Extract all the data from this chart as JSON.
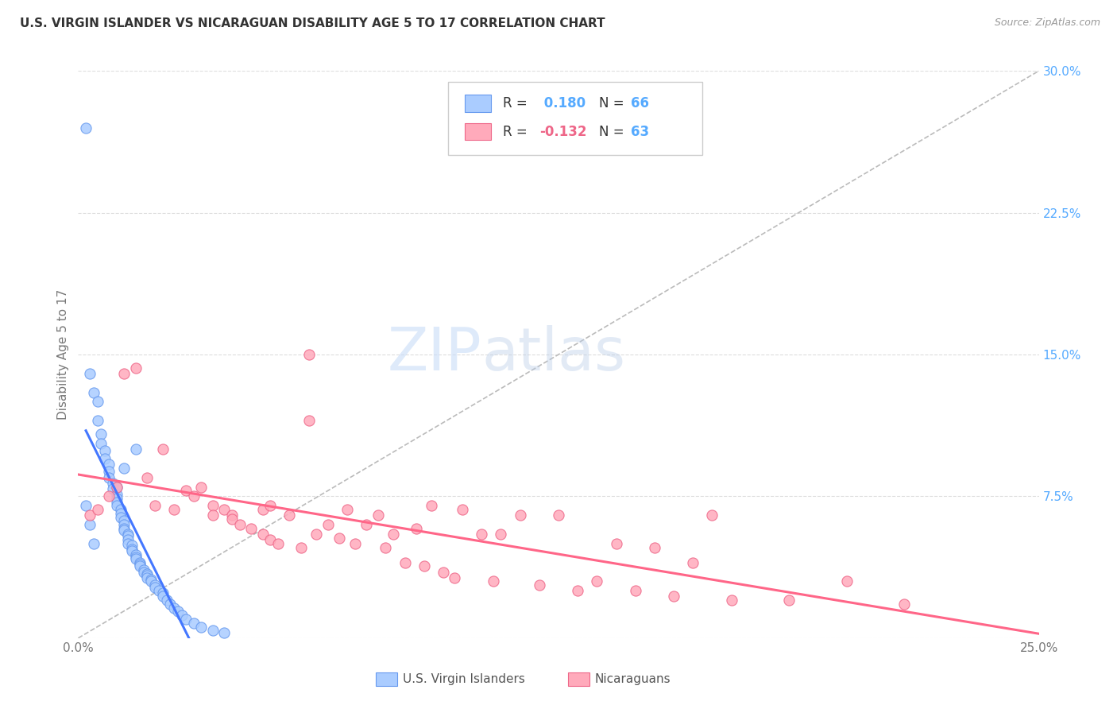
{
  "title": "U.S. VIRGIN ISLANDER VS NICARAGUAN DISABILITY AGE 5 TO 17 CORRELATION CHART",
  "source": "Source: ZipAtlas.com",
  "ylabel": "Disability Age 5 to 17",
  "xlim": [
    0.0,
    0.25
  ],
  "ylim": [
    0.0,
    0.3
  ],
  "color_blue": "#aaccff",
  "color_blue_edge": "#6699ee",
  "color_pink": "#ffaabb",
  "color_pink_edge": "#ee6688",
  "color_diagonal": "#bbbbbb",
  "color_trend_blue": "#4477ff",
  "color_trend_pink": "#ff6688",
  "color_ytick": "#55aaff",
  "background_color": "#ffffff",
  "grid_color": "#dddddd",
  "vi_scatter_x": [
    0.002,
    0.003,
    0.004,
    0.005,
    0.005,
    0.006,
    0.006,
    0.007,
    0.007,
    0.008,
    0.008,
    0.008,
    0.009,
    0.009,
    0.01,
    0.01,
    0.01,
    0.01,
    0.011,
    0.011,
    0.011,
    0.012,
    0.012,
    0.012,
    0.012,
    0.013,
    0.013,
    0.013,
    0.013,
    0.014,
    0.014,
    0.014,
    0.015,
    0.015,
    0.015,
    0.016,
    0.016,
    0.016,
    0.017,
    0.017,
    0.018,
    0.018,
    0.018,
    0.019,
    0.019,
    0.02,
    0.02,
    0.021,
    0.022,
    0.022,
    0.023,
    0.024,
    0.025,
    0.026,
    0.027,
    0.028,
    0.03,
    0.032,
    0.035,
    0.038,
    0.002,
    0.003,
    0.004,
    0.01,
    0.012,
    0.015
  ],
  "vi_scatter_y": [
    0.27,
    0.14,
    0.13,
    0.125,
    0.115,
    0.108,
    0.103,
    0.099,
    0.095,
    0.092,
    0.088,
    0.085,
    0.082,
    0.079,
    0.076,
    0.074,
    0.072,
    0.07,
    0.068,
    0.066,
    0.064,
    0.062,
    0.06,
    0.058,
    0.057,
    0.055,
    0.054,
    0.052,
    0.05,
    0.049,
    0.047,
    0.046,
    0.044,
    0.043,
    0.042,
    0.04,
    0.039,
    0.038,
    0.036,
    0.035,
    0.034,
    0.033,
    0.032,
    0.031,
    0.03,
    0.028,
    0.027,
    0.025,
    0.024,
    0.022,
    0.02,
    0.018,
    0.016,
    0.014,
    0.012,
    0.01,
    0.008,
    0.006,
    0.004,
    0.003,
    0.07,
    0.06,
    0.05,
    0.08,
    0.09,
    0.1
  ],
  "nic_scatter_x": [
    0.003,
    0.005,
    0.008,
    0.01,
    0.012,
    0.015,
    0.018,
    0.02,
    0.022,
    0.025,
    0.028,
    0.03,
    0.032,
    0.035,
    0.035,
    0.038,
    0.04,
    0.04,
    0.042,
    0.045,
    0.048,
    0.048,
    0.05,
    0.05,
    0.052,
    0.055,
    0.058,
    0.06,
    0.062,
    0.065,
    0.068,
    0.07,
    0.072,
    0.075,
    0.078,
    0.08,
    0.082,
    0.085,
    0.088,
    0.09,
    0.092,
    0.095,
    0.098,
    0.1,
    0.105,
    0.108,
    0.11,
    0.115,
    0.12,
    0.125,
    0.13,
    0.135,
    0.14,
    0.145,
    0.15,
    0.155,
    0.16,
    0.165,
    0.17,
    0.185,
    0.2,
    0.215,
    0.06
  ],
  "nic_scatter_y": [
    0.065,
    0.068,
    0.075,
    0.08,
    0.14,
    0.143,
    0.085,
    0.07,
    0.1,
    0.068,
    0.078,
    0.075,
    0.08,
    0.07,
    0.065,
    0.068,
    0.065,
    0.063,
    0.06,
    0.058,
    0.055,
    0.068,
    0.052,
    0.07,
    0.05,
    0.065,
    0.048,
    0.115,
    0.055,
    0.06,
    0.053,
    0.068,
    0.05,
    0.06,
    0.065,
    0.048,
    0.055,
    0.04,
    0.058,
    0.038,
    0.07,
    0.035,
    0.032,
    0.068,
    0.055,
    0.03,
    0.055,
    0.065,
    0.028,
    0.065,
    0.025,
    0.03,
    0.05,
    0.025,
    0.048,
    0.022,
    0.04,
    0.065,
    0.02,
    0.02,
    0.03,
    0.018,
    0.15
  ]
}
